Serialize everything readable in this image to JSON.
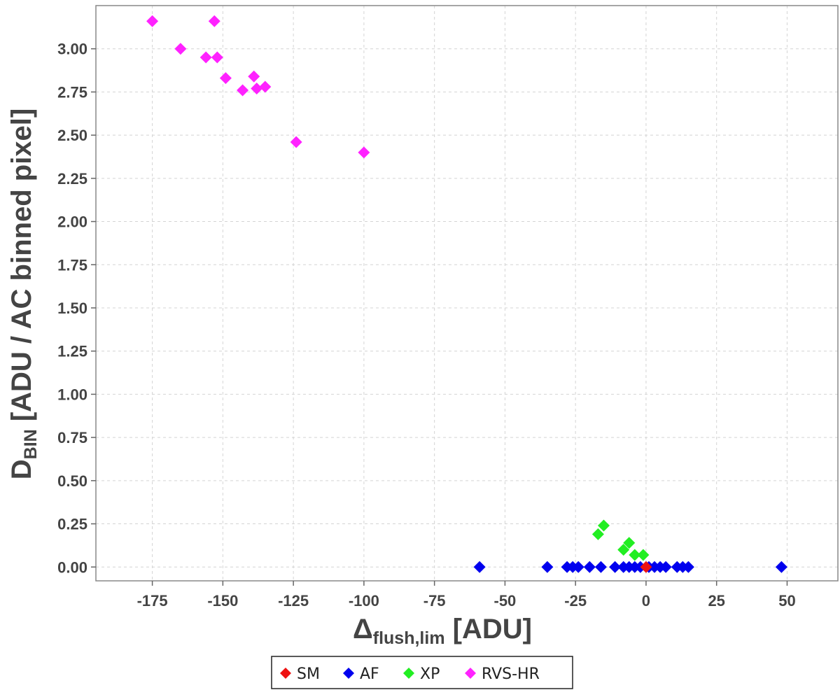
{
  "chart_data": {
    "type": "scatter",
    "marker": "diamond",
    "xlabel": {
      "main": "Δ",
      "sub": "flush,lim",
      "unit": " [ADU]"
    },
    "ylabel": {
      "main": "D",
      "sub": "BIN",
      "unit": " [ADU / AC binned pixel]"
    },
    "xlim": [
      -195,
      68
    ],
    "ylim": [
      -0.08,
      3.25
    ],
    "xticks": [
      -175,
      -150,
      -125,
      -100,
      -75,
      -50,
      -25,
      0,
      25,
      50
    ],
    "yticks": [
      0.0,
      0.25,
      0.5,
      0.75,
      1.0,
      1.25,
      1.5,
      1.75,
      2.0,
      2.25,
      2.5,
      2.75,
      3.0
    ],
    "ytick_labels": [
      "0.00",
      "0.25",
      "0.50",
      "0.75",
      "1.00",
      "1.25",
      "1.50",
      "1.75",
      "2.00",
      "2.25",
      "2.50",
      "2.75",
      "3.00"
    ],
    "grid": true,
    "legend_position": "bottom-center",
    "series": [
      {
        "name": "AF",
        "color": "#0000ee",
        "points": [
          [
            -59,
            0
          ],
          [
            -35,
            0
          ],
          [
            -28,
            0
          ],
          [
            -26,
            0
          ],
          [
            -24,
            0
          ],
          [
            -20,
            0
          ],
          [
            -16,
            0
          ],
          [
            -11,
            0
          ],
          [
            -8,
            0
          ],
          [
            -6,
            0
          ],
          [
            -4,
            0
          ],
          [
            -2,
            0
          ],
          [
            1,
            0
          ],
          [
            3,
            0
          ],
          [
            5,
            0
          ],
          [
            7,
            0
          ],
          [
            11,
            0
          ],
          [
            13,
            0
          ],
          [
            15,
            0
          ],
          [
            48,
            0
          ]
        ]
      },
      {
        "name": "XP",
        "color": "#22ee22",
        "points": [
          [
            -17,
            0.19
          ],
          [
            -15,
            0.24
          ],
          [
            -8,
            0.1
          ],
          [
            -6,
            0.14
          ],
          [
            -4,
            0.07
          ],
          [
            -1,
            0.07
          ]
        ]
      },
      {
        "name": "SM",
        "color": "#ee1111",
        "points": [
          [
            0,
            0
          ]
        ]
      },
      {
        "name": "RVS-HR",
        "color": "#ff22ff",
        "points": [
          [
            -175,
            3.16
          ],
          [
            -153,
            3.16
          ],
          [
            -165,
            3.0
          ],
          [
            -156,
            2.95
          ],
          [
            -152,
            2.95
          ],
          [
            -149,
            2.83
          ],
          [
            -139,
            2.84
          ],
          [
            -143,
            2.76
          ],
          [
            -138,
            2.77
          ],
          [
            -135,
            2.78
          ],
          [
            -124,
            2.46
          ],
          [
            -100,
            2.4
          ]
        ]
      }
    ],
    "legend_order": [
      "SM",
      "AF",
      "XP",
      "RVS-HR"
    ]
  }
}
